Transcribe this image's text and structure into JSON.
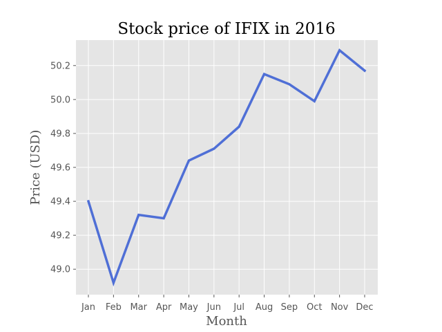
{
  "chart_data": {
    "type": "line",
    "title": "Stock price of IFIX in 2016",
    "xlabel": "Month",
    "ylabel": "Price (USD)",
    "categories": [
      "Jan",
      "Feb",
      "Mar",
      "Apr",
      "May",
      "Jun",
      "Jul",
      "Aug",
      "Sep",
      "Oct",
      "Nov",
      "Dec"
    ],
    "series": [
      {
        "values": [
          49.4,
          48.92,
          49.32,
          49.3,
          49.64,
          49.71,
          49.84,
          50.15,
          50.09,
          49.99,
          50.29,
          50.17
        ],
        "color": "#4f6fd6"
      }
    ],
    "ylim": [
      48.85,
      50.35
    ],
    "yticks": [
      49.0,
      49.2,
      49.4,
      49.6,
      49.8,
      50.0,
      50.2
    ],
    "ytick_labels": [
      "49.0",
      "49.2",
      "49.4",
      "49.6",
      "49.8",
      "50.0",
      "50.2"
    ],
    "grid": true,
    "background_color": "#e5e5e5",
    "grid_color": "#ffffff"
  }
}
